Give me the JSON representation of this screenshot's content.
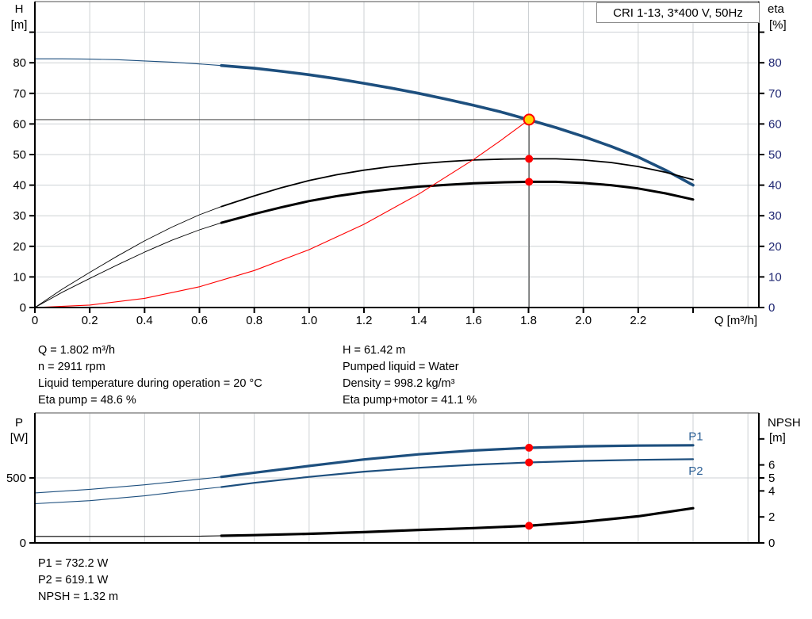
{
  "title_box": "CRI 1-13, 3*400 V, 50Hz",
  "info_left": [
    "Q = 1.802 m³/h",
    "n = 2911 rpm",
    "Liquid temperature during operation = 20 °C",
    "Eta pump = 48.6 %"
  ],
  "info_right": [
    "H = 61.42 m",
    "Pumped liquid = Water",
    "Density = 998.2 kg/m³",
    "Eta pump+motor = 41.1 %"
  ],
  "info_bottom": [
    "P1 = 732.2 W",
    "P2 = 619.1 W",
    "NPSH = 1.32 m"
  ],
  "colors": {
    "curve_blue": "#1d4f7e",
    "black": "#000000",
    "red": "#ff0000",
    "yellow": "#ffd400",
    "grid": "#cdd1d4",
    "border_gray": "#8a8a8a",
    "guide": "#4d4d4d",
    "eta_label": "#1c2470",
    "p_label_blue": "#2d6096"
  },
  "chart_data": [
    {
      "type": "line",
      "title": "Pump curve: head and efficiency vs flow",
      "x": {
        "label": "Q [m³/h]",
        "min": 0,
        "max": 2.64,
        "grid": [
          0.2,
          0.4,
          0.6,
          0.8,
          1,
          1.2,
          1.4,
          1.6,
          1.8,
          2,
          2.2,
          2.4,
          2.6
        ],
        "ticks": [
          {
            "v": 0,
            "l": "0"
          },
          {
            "v": 0.2,
            "l": "0.2"
          },
          {
            "v": 0.4,
            "l": "0.4"
          },
          {
            "v": 0.6,
            "l": "0.6"
          },
          {
            "v": 0.8,
            "l": "0.8"
          },
          {
            "v": 1,
            "l": "1.0"
          },
          {
            "v": 1.2,
            "l": "1.2"
          },
          {
            "v": 1.4,
            "l": "1.4"
          },
          {
            "v": 1.6,
            "l": "1.6"
          },
          {
            "v": 1.8,
            "l": "1.8"
          },
          {
            "v": 2,
            "l": "2.0"
          },
          {
            "v": 2.2,
            "l": "2.2"
          },
          {
            "v": 2.4,
            "l": ""
          }
        ]
      },
      "y_left": {
        "label": [
          "H",
          "[m]"
        ],
        "min": 0,
        "max": 100,
        "grid": [
          10,
          20,
          30,
          40,
          50,
          60,
          70,
          80,
          90
        ],
        "ticks": [
          {
            "v": 0,
            "l": "0"
          },
          {
            "v": 10,
            "l": "10"
          },
          {
            "v": 20,
            "l": "20"
          },
          {
            "v": 30,
            "l": "30"
          },
          {
            "v": 40,
            "l": "40"
          },
          {
            "v": 50,
            "l": "50"
          },
          {
            "v": 60,
            "l": "60"
          },
          {
            "v": 70,
            "l": "70"
          },
          {
            "v": 80,
            "l": "80"
          },
          {
            "v": 90,
            "l": ""
          }
        ]
      },
      "y_right": {
        "label": [
          "eta",
          "[%]"
        ],
        "min": 0,
        "max": 100,
        "label_color": "eta_label",
        "ticks": [
          {
            "v": 0,
            "l": "0"
          },
          {
            "v": 10,
            "l": "10"
          },
          {
            "v": 20,
            "l": "20"
          },
          {
            "v": 30,
            "l": "30"
          },
          {
            "v": 40,
            "l": "40"
          },
          {
            "v": 50,
            "l": "50"
          },
          {
            "v": 60,
            "l": "60"
          },
          {
            "v": 70,
            "l": "70"
          },
          {
            "v": 80,
            "l": "80"
          },
          {
            "v": 90,
            "l": ""
          }
        ]
      },
      "series": [
        {
          "name": "head",
          "axis": "left",
          "color": "curve_blue",
          "thick_from": 0.68,
          "w_thin": 1.1,
          "w_thick": 3.6,
          "points": [
            [
              0,
              81.3
            ],
            [
              0.1,
              81.3
            ],
            [
              0.2,
              81.2
            ],
            [
              0.3,
              81.0
            ],
            [
              0.4,
              80.6
            ],
            [
              0.5,
              80.2
            ],
            [
              0.6,
              79.6
            ],
            [
              0.68,
              79.1
            ],
            [
              0.8,
              78.2
            ],
            [
              0.9,
              77.2
            ],
            [
              1,
              76.1
            ],
            [
              1.1,
              74.8
            ],
            [
              1.2,
              73.3
            ],
            [
              1.3,
              71.7
            ],
            [
              1.4,
              70.0
            ],
            [
              1.5,
              68.1
            ],
            [
              1.6,
              66.1
            ],
            [
              1.7,
              63.9
            ],
            [
              1.8,
              61.4
            ],
            [
              1.9,
              58.8
            ],
            [
              2,
              55.9
            ],
            [
              2.1,
              52.7
            ],
            [
              2.2,
              49.2
            ],
            [
              2.3,
              44.9
            ],
            [
              2.4,
              40.0
            ]
          ]
        },
        {
          "name": "eta-pump",
          "axis": "right",
          "color": "black",
          "thick_from": 0.68,
          "w_thin": 0.9,
          "w_thick": 1.8,
          "points": [
            [
              0,
              0
            ],
            [
              0.1,
              6
            ],
            [
              0.2,
              11.5
            ],
            [
              0.3,
              16.8
            ],
            [
              0.4,
              21.8
            ],
            [
              0.5,
              26.3
            ],
            [
              0.6,
              30.3
            ],
            [
              0.68,
              33
            ],
            [
              0.8,
              36.5
            ],
            [
              0.9,
              39.2
            ],
            [
              1,
              41.5
            ],
            [
              1.1,
              43.4
            ],
            [
              1.2,
              44.9
            ],
            [
              1.3,
              46.1
            ],
            [
              1.4,
              47.0
            ],
            [
              1.5,
              47.7
            ],
            [
              1.6,
              48.2
            ],
            [
              1.7,
              48.5
            ],
            [
              1.8,
              48.6
            ],
            [
              1.9,
              48.6
            ],
            [
              2,
              48.2
            ],
            [
              2.1,
              47.4
            ],
            [
              2.2,
              46.1
            ],
            [
              2.3,
              44.2
            ],
            [
              2.4,
              41.8
            ]
          ]
        },
        {
          "name": "eta-pump-motor",
          "axis": "right",
          "color": "black",
          "thick_from": 0.68,
          "w_thin": 0.9,
          "w_thick": 3,
          "points": [
            [
              0,
              0
            ],
            [
              0.1,
              5
            ],
            [
              0.2,
              9.5
            ],
            [
              0.3,
              13.9
            ],
            [
              0.4,
              18.1
            ],
            [
              0.5,
              22.0
            ],
            [
              0.6,
              25.4
            ],
            [
              0.68,
              27.7
            ],
            [
              0.8,
              30.6
            ],
            [
              0.9,
              32.8
            ],
            [
              1,
              34.8
            ],
            [
              1.1,
              36.4
            ],
            [
              1.2,
              37.7
            ],
            [
              1.3,
              38.7
            ],
            [
              1.4,
              39.5
            ],
            [
              1.5,
              40.1
            ],
            [
              1.6,
              40.6
            ],
            [
              1.7,
              40.9
            ],
            [
              1.8,
              41.1
            ],
            [
              1.9,
              41.1
            ],
            [
              2,
              40.7
            ],
            [
              2.1,
              40.0
            ],
            [
              2.2,
              38.9
            ],
            [
              2.3,
              37.3
            ],
            [
              2.4,
              35.3
            ]
          ]
        },
        {
          "name": "system-curve",
          "axis": "left",
          "color": "red",
          "thick_from": null,
          "w_thin": 1.1,
          "w_thick": 1.1,
          "points": [
            [
              0,
              0
            ],
            [
              0.2,
              0.8
            ],
            [
              0.4,
              3.0
            ],
            [
              0.6,
              6.8
            ],
            [
              0.8,
              12.1
            ],
            [
              1,
              18.9
            ],
            [
              1.2,
              27.2
            ],
            [
              1.4,
              37.1
            ],
            [
              1.6,
              48.4
            ],
            [
              1.7,
              54.7
            ],
            [
              1.802,
              61.42
            ]
          ]
        }
      ],
      "guides": {
        "q": 1.802,
        "h": 61.42
      },
      "markers": [
        {
          "name": "operating-point-marker",
          "style": "duty",
          "axis": "left",
          "q": 1.802,
          "v": 61.42
        },
        {
          "name": "eta-pump-point-marker",
          "style": "dot",
          "axis": "right",
          "q": 1.802,
          "v": 48.6
        },
        {
          "name": "eta-pump-motor-point-marker",
          "style": "dot",
          "axis": "right",
          "q": 1.802,
          "v": 41.1
        }
      ]
    },
    {
      "type": "line",
      "title": "Power and NPSH vs flow",
      "x": {
        "label": "",
        "min": 0,
        "max": 2.64,
        "grid": [
          0.2,
          0.4,
          0.6,
          0.8,
          1,
          1.2,
          1.4,
          1.6,
          1.8,
          2,
          2.2,
          2.4,
          2.6
        ],
        "ticks": []
      },
      "y_left": {
        "label": [
          "P",
          "[W]"
        ],
        "min": 0,
        "max": 1000,
        "grid": [
          500
        ],
        "ticks": [
          {
            "v": 0,
            "l": "0"
          },
          {
            "v": 500,
            "l": "500"
          }
        ]
      },
      "y_right": {
        "label": [
          "NPSH",
          "[m]"
        ],
        "min": 0,
        "max": 10,
        "ticks": [
          {
            "v": 0,
            "l": "0"
          },
          {
            "v": 2,
            "l": "2"
          },
          {
            "v": 4,
            "l": "4"
          },
          {
            "v": 5,
            "l": "5"
          },
          {
            "v": 6,
            "l": "6"
          },
          {
            "v": 8,
            "l": ""
          }
        ]
      },
      "series": [
        {
          "name": "p1",
          "axis": "left",
          "color": "curve_blue",
          "thick_from": 0.68,
          "w_thin": 1.1,
          "w_thick": 3.2,
          "points": [
            [
              0,
              385
            ],
            [
              0.2,
              412
            ],
            [
              0.4,
              447
            ],
            [
              0.6,
              490
            ],
            [
              0.68,
              508
            ],
            [
              0.8,
              540
            ],
            [
              1,
              592
            ],
            [
              1.2,
              642
            ],
            [
              1.4,
              682
            ],
            [
              1.6,
              711
            ],
            [
              1.8,
              732
            ],
            [
              2,
              743
            ],
            [
              2.2,
              749
            ],
            [
              2.4,
              751
            ]
          ]
        },
        {
          "name": "p2",
          "axis": "left",
          "color": "curve_blue",
          "thick_from": 0.68,
          "w_thin": 1.1,
          "w_thick": 2.2,
          "points": [
            [
              0,
              302
            ],
            [
              0.2,
              325
            ],
            [
              0.4,
              362
            ],
            [
              0.6,
              412
            ],
            [
              0.68,
              430
            ],
            [
              0.8,
              462
            ],
            [
              1,
              508
            ],
            [
              1.2,
              548
            ],
            [
              1.4,
              578
            ],
            [
              1.6,
              601
            ],
            [
              1.8,
              619
            ],
            [
              2,
              631
            ],
            [
              2.2,
              639
            ],
            [
              2.4,
              644
            ]
          ]
        },
        {
          "name": "npsh",
          "axis": "right",
          "color": "black",
          "thick_from": 0.68,
          "w_thin": 1.1,
          "w_thick": 3.2,
          "points": [
            [
              0,
              0.5
            ],
            [
              0.2,
              0.5
            ],
            [
              0.4,
              0.5
            ],
            [
              0.6,
              0.52
            ],
            [
              0.68,
              0.55
            ],
            [
              0.8,
              0.6
            ],
            [
              1,
              0.7
            ],
            [
              1.2,
              0.83
            ],
            [
              1.4,
              1.0
            ],
            [
              1.6,
              1.14
            ],
            [
              1.8,
              1.32
            ],
            [
              2,
              1.62
            ],
            [
              2.2,
              2.05
            ],
            [
              2.4,
              2.67
            ]
          ]
        }
      ],
      "series_labels": [
        {
          "text": "P1",
          "q": 2.41,
          "v": 790,
          "axis": "left"
        },
        {
          "text": "P2",
          "q": 2.41,
          "v": 524,
          "axis": "left"
        }
      ],
      "markers": [
        {
          "name": "p1-point-marker",
          "style": "dot",
          "axis": "left",
          "q": 1.802,
          "v": 732.2
        },
        {
          "name": "p2-point-marker",
          "style": "dot",
          "axis": "left",
          "q": 1.802,
          "v": 619.1
        },
        {
          "name": "npsh-point-marker",
          "style": "dot",
          "axis": "right",
          "q": 1.802,
          "v": 1.32
        }
      ]
    }
  ]
}
